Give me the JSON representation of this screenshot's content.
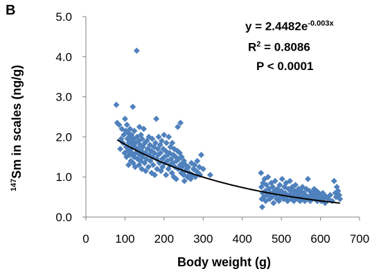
{
  "panel_label": "B",
  "annotations": {
    "equation_base": "y = 2.4482e",
    "equation_exponent": "-0.003x",
    "r2_prefix": "R",
    "r2_sup": "2",
    "r2_value": " = 0.8086",
    "p_value": "P < 0.0001"
  },
  "axis_labels": {
    "x": "Body weight (g)",
    "y_sup": "147",
    "y_rest": "Sm in scales (ng/g)"
  },
  "colors": {
    "marker": "#4f81bd",
    "trend": "#000000",
    "axis": "#7f7f7f"
  },
  "chart_data": {
    "type": "scatter",
    "title": "",
    "xlabel": "Body weight (g)",
    "ylabel": "147Sm in scales (ng/g)",
    "xlim": [
      0,
      700
    ],
    "ylim": [
      0,
      5
    ],
    "xticks": [
      "0",
      "100",
      "200",
      "300",
      "400",
      "500",
      "600",
      "700"
    ],
    "yticks": [
      "0.0",
      "1.0",
      "2.0",
      "3.0",
      "4.0",
      "5.0"
    ],
    "grid": false,
    "legend": "none",
    "marker": "diamond",
    "trendline": {
      "type": "exponential",
      "a": 2.4482,
      "b": -0.003,
      "x_range": [
        80,
        650
      ]
    },
    "points": [
      [
        78,
        2.8
      ],
      [
        80,
        2.35
      ],
      [
        85,
        2.3
      ],
      [
        88,
        1.7
      ],
      [
        90,
        1.95
      ],
      [
        92,
        2.2
      ],
      [
        95,
        1.85
      ],
      [
        97,
        2.05
      ],
      [
        99,
        1.6
      ],
      [
        100,
        2.45
      ],
      [
        102,
        2.15
      ],
      [
        103,
        1.75
      ],
      [
        104,
        1.5
      ],
      [
        105,
        2.3
      ],
      [
        106,
        1.95
      ],
      [
        107,
        1.65
      ],
      [
        108,
        2.1
      ],
      [
        109,
        1.3
      ],
      [
        110,
        1.85
      ],
      [
        111,
        2.0
      ],
      [
        112,
        1.55
      ],
      [
        113,
        2.2
      ],
      [
        114,
        1.7
      ],
      [
        115,
        1.4
      ],
      [
        116,
        1.9
      ],
      [
        117,
        2.05
      ],
      [
        118,
        1.6
      ],
      [
        119,
        1.8
      ],
      [
        120,
        2.75
      ],
      [
        121,
        1.35
      ],
      [
        122,
        1.95
      ],
      [
        123,
        1.5
      ],
      [
        124,
        2.15
      ],
      [
        125,
        1.75
      ],
      [
        126,
        1.25
      ],
      [
        127,
        1.85
      ],
      [
        128,
        1.6
      ],
      [
        130,
        4.15
      ],
      [
        131,
        2.0
      ],
      [
        132,
        1.45
      ],
      [
        133,
        1.7
      ],
      [
        135,
        1.9
      ],
      [
        136,
        1.3
      ],
      [
        137,
        2.25
      ],
      [
        138,
        1.55
      ],
      [
        139,
        1.8
      ],
      [
        140,
        1.4
      ],
      [
        141,
        2.05
      ],
      [
        142,
        1.65
      ],
      [
        143,
        1.2
      ],
      [
        144,
        1.95
      ],
      [
        145,
        1.5
      ],
      [
        146,
        1.75
      ],
      [
        148,
        2.2
      ],
      [
        150,
        1.35
      ],
      [
        151,
        1.85
      ],
      [
        152,
        1.6
      ],
      [
        153,
        1.15
      ],
      [
        155,
        1.45
      ],
      [
        156,
        1.9
      ],
      [
        158,
        1.7
      ],
      [
        160,
        1.25
      ],
      [
        161,
        2.0
      ],
      [
        162,
        1.55
      ],
      [
        164,
        1.8
      ],
      [
        165,
        1.4
      ],
      [
        167,
        1.65
      ],
      [
        168,
        1.1
      ],
      [
        170,
        1.95
      ],
      [
        171,
        1.5
      ],
      [
        172,
        1.3
      ],
      [
        174,
        1.75
      ],
      [
        175,
        1.6
      ],
      [
        176,
        1.05
      ],
      [
        178,
        1.85
      ],
      [
        180,
        2.45
      ],
      [
        181,
        1.45
      ],
      [
        182,
        1.2
      ],
      [
        184,
        1.7
      ],
      [
        185,
        1.55
      ],
      [
        186,
        2.0
      ],
      [
        188,
        1.35
      ],
      [
        190,
        1.8
      ],
      [
        191,
        1.6
      ],
      [
        192,
        1.15
      ],
      [
        194,
        1.9
      ],
      [
        195,
        1.45
      ],
      [
        196,
        1.25
      ],
      [
        198,
        1.7
      ],
      [
        200,
        2.05
      ],
      [
        201,
        1.5
      ],
      [
        202,
        1.35
      ],
      [
        204,
        1.65
      ],
      [
        205,
        1.05
      ],
      [
        206,
        1.85
      ],
      [
        208,
        1.4
      ],
      [
        210,
        1.55
      ],
      [
        211,
        1.2
      ],
      [
        212,
        2.0
      ],
      [
        214,
        1.6
      ],
      [
        215,
        1.3
      ],
      [
        216,
        1.75
      ],
      [
        218,
        1.45
      ],
      [
        220,
        1.1
      ],
      [
        221,
        1.85
      ],
      [
        222,
        1.35
      ],
      [
        224,
        1.55
      ],
      [
        225,
        1.0
      ],
      [
        226,
        1.7
      ],
      [
        228,
        1.25
      ],
      [
        230,
        1.5
      ],
      [
        231,
        0.95
      ],
      [
        232,
        1.4
      ],
      [
        234,
        1.65
      ],
      [
        235,
        2.25
      ],
      [
        236,
        1.2
      ],
      [
        238,
        1.45
      ],
      [
        240,
        1.6
      ],
      [
        241,
        1.3
      ],
      [
        242,
        2.35
      ],
      [
        244,
        1.1
      ],
      [
        245,
        1.5
      ],
      [
        246,
        1.25
      ],
      [
        248,
        1.35
      ],
      [
        250,
        1.05
      ],
      [
        251,
        1.4
      ],
      [
        252,
        0.9
      ],
      [
        254,
        1.15
      ],
      [
        255,
        1.3
      ],
      [
        258,
        1.2
      ],
      [
        260,
        1.0
      ],
      [
        262,
        1.25
      ],
      [
        265,
        1.1
      ],
      [
        268,
        0.95
      ],
      [
        270,
        1.35
      ],
      [
        272,
        1.05
      ],
      [
        275,
        1.2
      ],
      [
        278,
        1.3
      ],
      [
        280,
        1.0
      ],
      [
        282,
        1.15
      ],
      [
        285,
        1.4
      ],
      [
        288,
        1.1
      ],
      [
        290,
        1.25
      ],
      [
        292,
        1.05
      ],
      [
        295,
        1.55
      ],
      [
        300,
        1.2
      ],
      [
        318,
        1.05
      ],
      [
        448,
        1.1
      ],
      [
        449,
        0.75
      ],
      [
        450,
        0.45
      ],
      [
        451,
        0.25
      ],
      [
        452,
        0.6
      ],
      [
        453,
        0.85
      ],
      [
        455,
        0.5
      ],
      [
        457,
        0.95
      ],
      [
        459,
        0.65
      ],
      [
        460,
        0.4
      ],
      [
        462,
        0.8
      ],
      [
        464,
        0.55
      ],
      [
        466,
        1.0
      ],
      [
        468,
        0.7
      ],
      [
        470,
        0.45
      ],
      [
        472,
        0.6
      ],
      [
        474,
        0.85
      ],
      [
        476,
        0.5
      ],
      [
        478,
        0.75
      ],
      [
        480,
        0.35
      ],
      [
        482,
        0.65
      ],
      [
        484,
        0.9
      ],
      [
        486,
        0.55
      ],
      [
        488,
        0.45
      ],
      [
        490,
        0.7
      ],
      [
        492,
        0.6
      ],
      [
        494,
        0.4
      ],
      [
        496,
        0.8
      ],
      [
        498,
        0.5
      ],
      [
        500,
        0.65
      ],
      [
        502,
        0.95
      ],
      [
        504,
        0.55
      ],
      [
        506,
        0.45
      ],
      [
        508,
        0.75
      ],
      [
        510,
        0.6
      ],
      [
        512,
        0.85
      ],
      [
        514,
        0.5
      ],
      [
        516,
        0.4
      ],
      [
        518,
        0.7
      ],
      [
        520,
        0.55
      ],
      [
        522,
        0.9
      ],
      [
        524,
        0.65
      ],
      [
        526,
        0.45
      ],
      [
        528,
        0.75
      ],
      [
        530,
        0.55
      ],
      [
        532,
        0.4
      ],
      [
        534,
        0.65
      ],
      [
        536,
        0.8
      ],
      [
        538,
        0.5
      ],
      [
        540,
        0.6
      ],
      [
        542,
        0.45
      ],
      [
        544,
        0.7
      ],
      [
        546,
        0.55
      ],
      [
        548,
        0.4
      ],
      [
        550,
        0.65
      ],
      [
        552,
        0.5
      ],
      [
        554,
        0.75
      ],
      [
        556,
        0.45
      ],
      [
        558,
        0.6
      ],
      [
        560,
        0.4
      ],
      [
        562,
        0.55
      ],
      [
        564,
        0.7
      ],
      [
        566,
        0.45
      ],
      [
        568,
        0.95
      ],
      [
        570,
        0.5
      ],
      [
        572,
        0.65
      ],
      [
        574,
        0.4
      ],
      [
        576,
        0.55
      ],
      [
        578,
        0.45
      ],
      [
        580,
        0.6
      ],
      [
        582,
        0.5
      ],
      [
        584,
        0.7
      ],
      [
        586,
        0.45
      ],
      [
        588,
        0.55
      ],
      [
        590,
        0.65
      ],
      [
        592,
        0.4
      ],
      [
        594,
        0.5
      ],
      [
        596,
        0.6
      ],
      [
        598,
        0.45
      ],
      [
        600,
        0.55
      ],
      [
        602,
        0.4
      ],
      [
        604,
        0.5
      ],
      [
        606,
        0.6
      ],
      [
        608,
        0.45
      ],
      [
        610,
        0.55
      ],
      [
        612,
        0.35
      ],
      [
        615,
        0.5
      ],
      [
        620,
        0.45
      ],
      [
        625,
        0.55
      ],
      [
        630,
        0.4
      ],
      [
        635,
        0.9
      ],
      [
        638,
        0.6
      ],
      [
        640,
        0.5
      ],
      [
        642,
        0.75
      ],
      [
        645,
        0.65
      ],
      [
        648,
        0.55
      ],
      [
        650,
        0.45
      ]
    ]
  }
}
